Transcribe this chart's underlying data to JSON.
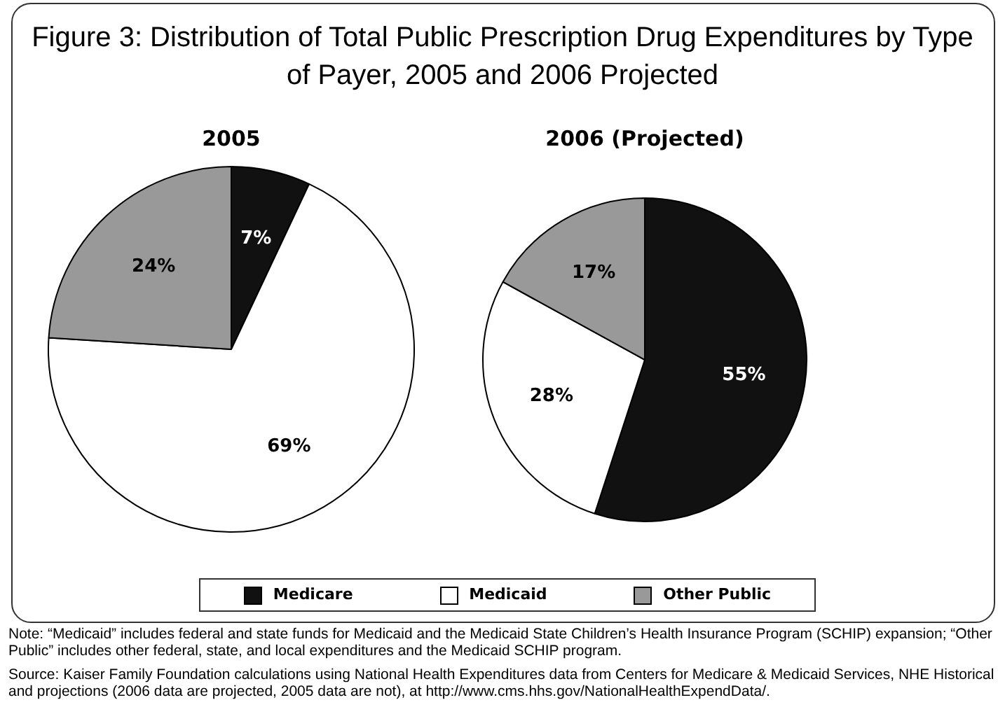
{
  "chart_data": [
    {
      "type": "pie",
      "title": "Figure 3: Distribution of Total Public Prescription Drug Expenditures by Type of Payer, 2005 and 2006 Projected",
      "subtitle": "2005",
      "categories": [
        "Medicare",
        "Medicaid",
        "Other Public"
      ],
      "values": [
        7,
        69,
        24
      ],
      "colors": [
        "#111111",
        "#ffffff",
        "#999999"
      ],
      "value_labels": [
        "7%",
        "69%",
        "24%"
      ],
      "legend": "bottom"
    },
    {
      "type": "pie",
      "subtitle": "2006 (Projected)",
      "categories": [
        null,
        null,
        null
      ],
      "values": [
        55,
        28,
        17
      ],
      "colors": [
        "#111111",
        "#ffffff",
        "#999999"
      ],
      "value_labels": [
        "55%",
        "28%",
        "17%"
      ],
      "annotations": [
        "Note: “Medicaid” includes federal and state funds for Medicaid and the Medicaid State Children’s Health Insurance Program (SCHIP) expansion; “Other Public” includes other federal, state, and local expenditures and the Medicaid SCHIP program.",
        "Source: Kaiser Family Foundation calculations using National Health Expenditures data from Centers for Medicare & Medicaid Services, NHE Historical and projections (2006 data are projected, 2005 data are not), at http://www.cms.hhs.gov/NationalHealthExpendData/."
      ]
    }
  ]
}
